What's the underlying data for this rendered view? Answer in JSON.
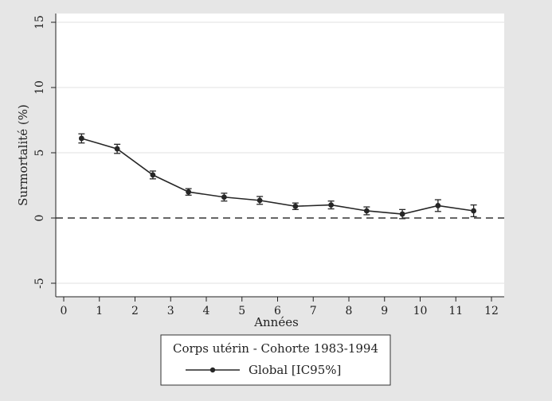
{
  "chart_data": {
    "type": "line",
    "xlabel": "Années",
    "ylabel": "Surmortalité (%)",
    "xlim": [
      0,
      12
    ],
    "ylim": [
      -5,
      15
    ],
    "xticks": [
      0,
      1,
      2,
      3,
      4,
      5,
      6,
      7,
      8,
      9,
      10,
      11,
      12
    ],
    "yticks": [
      -5,
      0,
      5,
      10,
      15
    ],
    "grid": true,
    "reference_line": 0,
    "legend_title": "Corps utérin - Cohorte 1983-1994",
    "legend_position": "bottom",
    "series": [
      {
        "name": "Global [IC95%]",
        "color": "#262626",
        "x": [
          0.5,
          1.5,
          2.5,
          3.5,
          4.5,
          5.5,
          6.5,
          7.5,
          8.5,
          9.5,
          10.5,
          11.5
        ],
        "y": [
          6.1,
          5.3,
          3.3,
          2.0,
          1.6,
          1.35,
          0.9,
          1.0,
          0.55,
          0.3,
          0.95,
          0.55
        ],
        "ci_low": [
          5.75,
          4.95,
          3.0,
          1.75,
          1.3,
          1.05,
          0.65,
          0.7,
          0.25,
          -0.05,
          0.5,
          0.1
        ],
        "ci_high": [
          6.45,
          5.65,
          3.6,
          2.25,
          1.9,
          1.65,
          1.15,
          1.3,
          0.85,
          0.65,
          1.4,
          1.0
        ]
      }
    ]
  }
}
